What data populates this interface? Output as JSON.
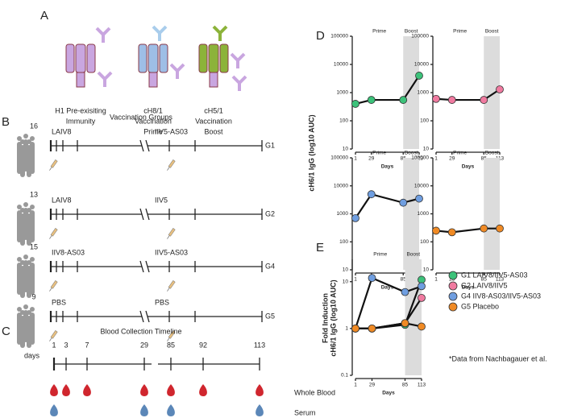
{
  "panel_a": {
    "label": "A",
    "items": [
      {
        "lines": [
          "H1 Pre-exisiting",
          "Immunity"
        ]
      },
      {
        "lines": [
          "cH8/1",
          "Vaccination",
          "Prime"
        ]
      },
      {
        "lines": [
          "cH5/1",
          "Vaccination",
          "Boost"
        ]
      }
    ]
  },
  "panel_b": {
    "label": "B",
    "title": "Vaccination Groups",
    "groups": [
      {
        "n": "16",
        "prime": "LAIV8",
        "boost": "IIV5-AS03",
        "name": "G1"
      },
      {
        "n": "13",
        "prime": "LAIV8",
        "boost": "IIV5",
        "name": "G2"
      },
      {
        "n": "15",
        "prime": "IIV8-AS03",
        "boost": "IIV5-AS03",
        "name": "G4"
      },
      {
        "n": "9",
        "prime": "PBS",
        "boost": "PBS",
        "name": "G5"
      }
    ]
  },
  "panel_c": {
    "label": "C",
    "title": "Blood Collection Timeline",
    "unit": "days",
    "days": [
      "1",
      "3",
      "7",
      "29",
      "85",
      "92",
      "113"
    ],
    "serum_days": [
      "1",
      "29",
      "85",
      "113"
    ],
    "whole_blood": "Whole Blood",
    "serum": "Serum"
  },
  "panel_d": {
    "label": "D",
    "y_label": "cH6/1 IgG (log10 AUC)"
  },
  "panel_e": {
    "label": "E",
    "y_label": [
      "Fold Induction",
      "cH6/1 IgG (log10 AUC)"
    ],
    "footnote": "*Data from Nachbagauer et al."
  },
  "chart_data": [
    {
      "type": "line",
      "x_label": "Days",
      "x": [
        1,
        29,
        85,
        113
      ],
      "xlim": [
        1,
        113
      ],
      "xticks": [
        1,
        29,
        85,
        113
      ],
      "ylim": [
        10,
        100000
      ],
      "yticks": [
        10,
        100,
        1000,
        10000,
        100000
      ],
      "log_y": true,
      "shade": [
        85,
        113
      ],
      "prime_label": "Prime",
      "boost_label": "Boost",
      "series": [
        {
          "color": "#3cc27a",
          "values": [
            400,
            550,
            550,
            4000
          ]
        }
      ]
    },
    {
      "type": "line",
      "x_label": "Days",
      "x": [
        1,
        29,
        85,
        113
      ],
      "xlim": [
        1,
        113
      ],
      "xticks": [
        1,
        29,
        85,
        113
      ],
      "ylim": [
        10,
        100000
      ],
      "yticks": [
        10,
        100,
        1000,
        10000,
        100000
      ],
      "log_y": true,
      "shade": [
        85,
        113
      ],
      "prime_label": "Prime",
      "boost_label": "Boost",
      "series": [
        {
          "color": "#f07aa0",
          "values": [
            600,
            550,
            550,
            1300
          ]
        }
      ]
    },
    {
      "type": "line",
      "x_label": "Days",
      "x": [
        1,
        29,
        85,
        113
      ],
      "xlim": [
        1,
        113
      ],
      "xticks": [
        1,
        29,
        85,
        113
      ],
      "ylim": [
        10,
        100000
      ],
      "yticks": [
        10,
        100,
        1000,
        10000,
        100000
      ],
      "log_y": true,
      "shade": [
        85,
        113
      ],
      "prime_label": "Prime",
      "boost_label": "Boost",
      "series": [
        {
          "color": "#6f9ee0",
          "values": [
            700,
            5000,
            2500,
            3500
          ]
        }
      ]
    },
    {
      "type": "line",
      "x_label": "Days",
      "x": [
        1,
        29,
        85,
        113
      ],
      "xlim": [
        1,
        113
      ],
      "xticks": [
        1,
        29,
        85,
        113
      ],
      "ylim": [
        10,
        100000
      ],
      "yticks": [
        10,
        100,
        1000,
        10000,
        100000
      ],
      "log_y": true,
      "shade": [
        85,
        113
      ],
      "prime_label": "Prime",
      "boost_label": "Boost",
      "series": [
        {
          "color": "#f08a24",
          "values": [
            250,
            220,
            300,
            300
          ]
        }
      ]
    },
    {
      "type": "line",
      "x_label": "Days",
      "x": [
        1,
        29,
        85,
        113
      ],
      "xlim": [
        1,
        113
      ],
      "xticks": [
        1,
        29,
        85,
        113
      ],
      "ylim": [
        0.1,
        30
      ],
      "yticks": [
        0.1,
        1,
        10
      ],
      "log_y": true,
      "shade": [
        85,
        113
      ],
      "prime_label": "Prime",
      "boost_label": "Boost",
      "series": [
        {
          "name": "G1 LAIV8/IIV5-AS03",
          "color": "#3cc27a",
          "values": [
            1,
            1,
            1.2,
            11
          ]
        },
        {
          "name": "G2 LAIV8/IIV5",
          "color": "#f07aa0",
          "values": [
            1,
            1,
            1.3,
            4.5
          ]
        },
        {
          "name": "G4 IIV8-AS03/IIV5-AS03",
          "color": "#6f9ee0",
          "values": [
            1,
            12,
            6,
            8
          ]
        },
        {
          "name": "G5 Placebo",
          "color": "#f08a24",
          "values": [
            1,
            1,
            1.3,
            1.1
          ]
        }
      ]
    }
  ]
}
